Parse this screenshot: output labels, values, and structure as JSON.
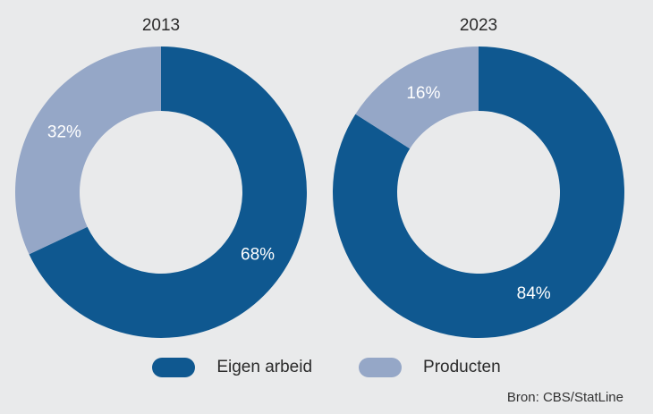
{
  "chart_data": [
    {
      "type": "pie",
      "title": "2013",
      "categories": [
        "Eigen arbeid",
        "Producten"
      ],
      "values": [
        68,
        32
      ],
      "labels": [
        "68%",
        "32%"
      ]
    },
    {
      "type": "pie",
      "title": "2023",
      "categories": [
        "Eigen arbeid",
        "Producten"
      ],
      "values": [
        84,
        16
      ],
      "labels": [
        "84%",
        "16%"
      ]
    }
  ],
  "legend": [
    {
      "label": "Eigen arbeid",
      "color": "#0f5890"
    },
    {
      "label": "Producten",
      "color": "#95a7c7"
    }
  ],
  "source": "Bron: CBS/StatLine"
}
